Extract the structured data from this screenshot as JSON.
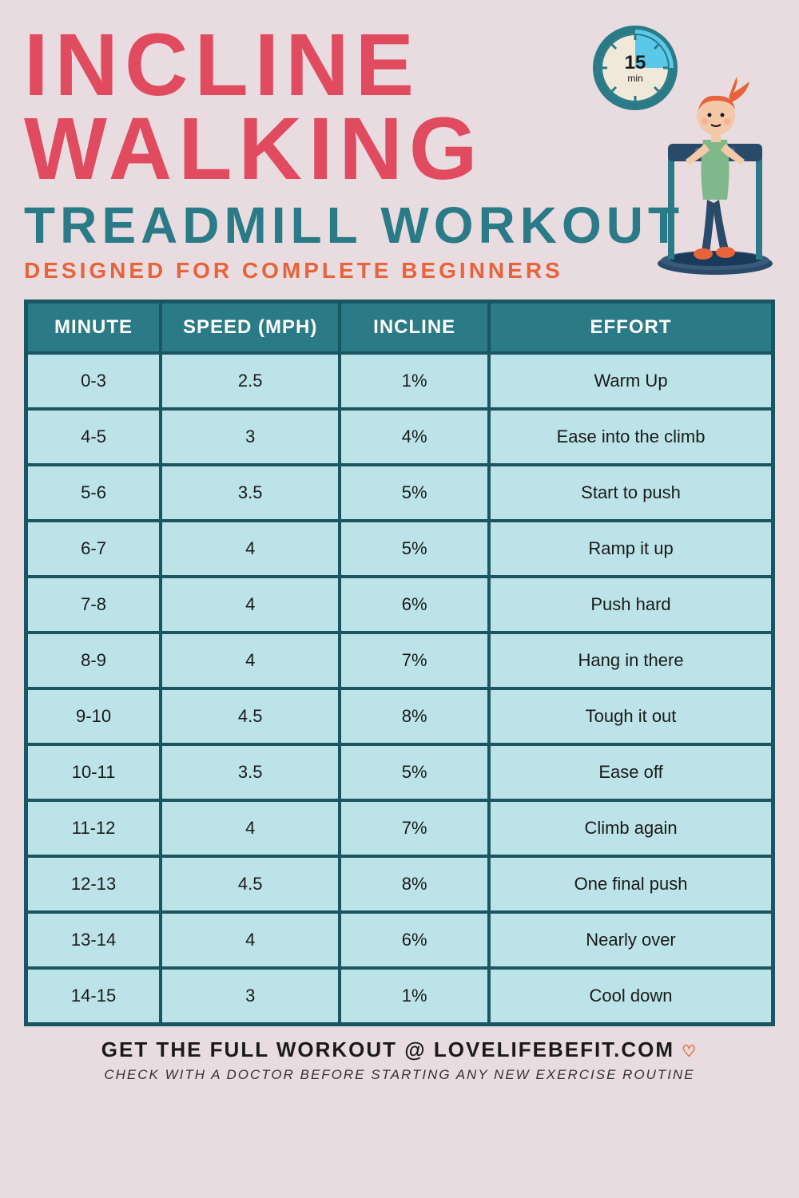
{
  "header": {
    "title_line1": "INCLINE",
    "title_line2": "WALKING",
    "title_line3": "TREADMILL WORKOUT",
    "subtitle": "DESIGNED FOR COMPLETE BEGINNERS",
    "clock_label_num": "15",
    "clock_label_unit": "min"
  },
  "colors": {
    "background": "#e8dce0",
    "title_red": "#e14b5f",
    "title_teal": "#2a7a87",
    "subtitle_orange": "#e8623a",
    "table_border": "#1a5562",
    "table_header_bg": "#2a7a87",
    "table_header_text": "#ffffff",
    "table_cell_bg": "#bce3e8",
    "table_cell_text": "#1a1a1a",
    "clock_rim": "#2a7a87",
    "clock_accent": "#5ac8e8",
    "person_hair": "#e8623a",
    "person_shirt": "#7fb88a",
    "person_pants": "#2a4a6a",
    "treadmill": "#2a4a6a"
  },
  "table": {
    "columns": [
      "MINUTE",
      "SPEED (MPH)",
      "INCLINE",
      "EFFORT"
    ],
    "rows": [
      [
        "0-3",
        "2.5",
        "1%",
        "Warm Up"
      ],
      [
        "4-5",
        "3",
        "4%",
        "Ease into the climb"
      ],
      [
        "5-6",
        "3.5",
        "5%",
        "Start to push"
      ],
      [
        "6-7",
        "4",
        "5%",
        "Ramp it up"
      ],
      [
        "7-8",
        "4",
        "6%",
        "Push hard"
      ],
      [
        "8-9",
        "4",
        "7%",
        "Hang in there"
      ],
      [
        "9-10",
        "4.5",
        "8%",
        "Tough it out"
      ],
      [
        "10-11",
        "3.5",
        "5%",
        "Ease off"
      ],
      [
        "11-12",
        "4",
        "7%",
        "Climb again"
      ],
      [
        "12-13",
        "4.5",
        "8%",
        "One final push"
      ],
      [
        "13-14",
        "4",
        "6%",
        "Nearly over"
      ],
      [
        "14-15",
        "3",
        "1%",
        "Cool down"
      ]
    ],
    "col_widths_pct": [
      18,
      24,
      20,
      38
    ],
    "header_fontsize": 24,
    "cell_fontsize": 22
  },
  "footer": {
    "line1": "GET THE FULL WORKOUT @ LOVELIFEBEFIT.COM",
    "heart": "♡",
    "line2": "CHECK WITH A DOCTOR BEFORE STARTING ANY NEW EXERCISE ROUTINE"
  },
  "typography": {
    "title_fontsize": 110,
    "title3_fontsize": 64,
    "subtitle_fontsize": 28,
    "footer1_fontsize": 26,
    "footer2_fontsize": 17
  }
}
